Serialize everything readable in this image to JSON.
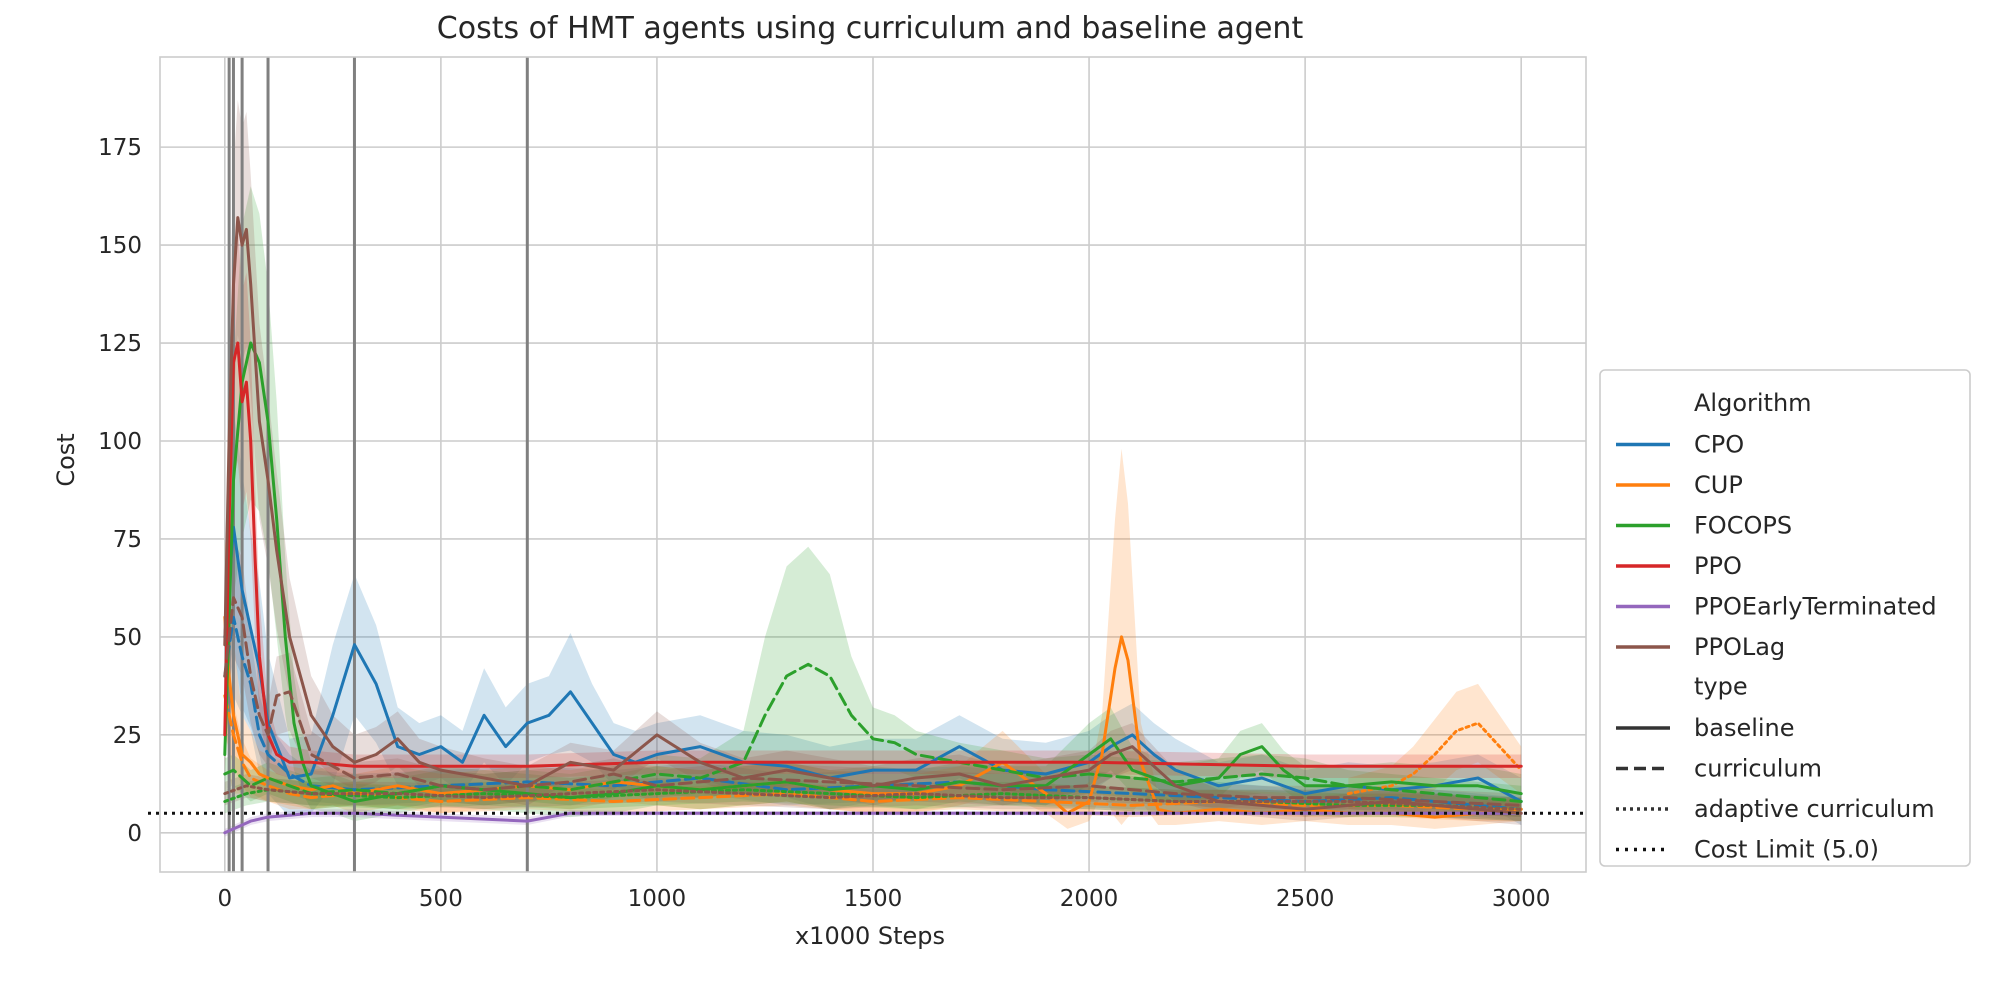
{
  "chart_data": {
    "type": "line",
    "title": "Costs of HMT agents using curriculum and baseline agent",
    "xlabel": "x1000 Steps",
    "ylabel": "Cost",
    "xlim": [
      -150,
      3150
    ],
    "ylim": [
      -10,
      198
    ],
    "xticks": [
      0,
      500,
      1000,
      1500,
      2000,
      2500,
      3000
    ],
    "yticks": [
      0,
      25,
      50,
      75,
      100,
      125,
      150,
      175
    ],
    "grid": true,
    "legend_placement": "right, outside plot, lower",
    "legend": {
      "algorithm_title": "Algorithm",
      "type_title": "type",
      "algorithms": [
        {
          "name": "CPO",
          "color": "#1f77b4"
        },
        {
          "name": "CUP",
          "color": "#ff7f0e"
        },
        {
          "name": "FOCOPS",
          "color": "#2ca02c"
        },
        {
          "name": "PPO",
          "color": "#d62728"
        },
        {
          "name": "PPOEarlyTerminated",
          "color": "#9467bd"
        },
        {
          "name": "PPOLag",
          "color": "#8c564b"
        }
      ],
      "types": [
        {
          "name": "baseline",
          "style": "solid"
        },
        {
          "name": "curriculum",
          "style": "dashed"
        },
        {
          "name": "adaptive curriculum",
          "style": "dotted"
        },
        {
          "name": "Cost Limit (5.0)",
          "style": "cost-limit"
        }
      ]
    },
    "reference_line": {
      "label": "Cost Limit (5.0)",
      "y": 5.0
    },
    "vertical_lines": [
      10,
      20,
      40,
      100,
      300,
      700
    ],
    "series": [
      {
        "algorithm": "CPO",
        "type": "baseline",
        "color": "#1f77b4",
        "x": [
          0,
          20,
          40,
          60,
          80,
          100,
          150,
          200,
          250,
          300,
          350,
          400,
          450,
          500,
          550,
          600,
          650,
          700,
          750,
          800,
          850,
          900,
          950,
          1000,
          1100,
          1200,
          1300,
          1400,
          1500,
          1600,
          1700,
          1800,
          1900,
          2000,
          2050,
          2100,
          2150,
          2200,
          2300,
          2400,
          2500,
          2600,
          2700,
          2800,
          2900,
          3000
        ],
        "y": [
          50,
          78,
          62,
          52,
          42,
          28,
          14,
          15,
          30,
          48,
          38,
          22,
          20,
          22,
          18,
          30,
          22,
          28,
          30,
          36,
          28,
          20,
          18,
          20,
          22,
          18,
          17,
          14,
          16,
          16,
          22,
          16,
          15,
          18,
          22,
          25,
          20,
          16,
          12,
          14,
          10,
          12,
          11,
          12,
          14,
          8
        ],
        "band": [
          15,
          30,
          30,
          25,
          22,
          18,
          10,
          10,
          18,
          18,
          15,
          10,
          8,
          8,
          8,
          12,
          10,
          10,
          10,
          15,
          10,
          8,
          8,
          8,
          8,
          8,
          8,
          8,
          8,
          8,
          8,
          8,
          8,
          8,
          8,
          8,
          8,
          8,
          6,
          6,
          6,
          6,
          6,
          6,
          6,
          6
        ]
      },
      {
        "algorithm": "CPO",
        "type": "curriculum",
        "color": "#1f77b4",
        "x": [
          0,
          20,
          40,
          60,
          80,
          100,
          150,
          200,
          300,
          500,
          700,
          900,
          1100,
          1300,
          1500,
          1700,
          1900,
          2100,
          2300,
          2500,
          2700,
          2900,
          3000
        ],
        "y": [
          40,
          55,
          45,
          38,
          25,
          20,
          15,
          12,
          11,
          12,
          13,
          12,
          14,
          11,
          12,
          13,
          11,
          10,
          9,
          8,
          9,
          7,
          6
        ],
        "band": [
          10,
          20,
          15,
          12,
          10,
          8,
          5,
          4,
          4,
          4,
          4,
          4,
          4,
          4,
          4,
          4,
          4,
          4,
          4,
          3,
          3,
          3,
          3
        ]
      },
      {
        "algorithm": "CUP",
        "type": "baseline",
        "color": "#ff7f0e",
        "x": [
          0,
          10,
          20,
          40,
          60,
          80,
          100,
          150,
          200,
          250,
          300,
          350,
          400,
          500,
          600,
          700,
          800,
          900,
          1000,
          1100,
          1200,
          1300,
          1400,
          1500,
          1600,
          1700,
          1800,
          1900,
          1950,
          2000,
          2030,
          2060,
          2075,
          2090,
          2120,
          2160,
          2200,
          2300,
          2400,
          2500,
          2600,
          2700,
          2800,
          2900,
          3000
        ],
        "y": [
          55,
          40,
          30,
          20,
          18,
          15,
          14,
          12,
          11,
          12,
          10,
          11,
          12,
          10,
          11,
          12,
          11,
          13,
          12,
          11,
          12,
          13,
          11,
          10,
          10,
          12,
          18,
          10,
          5,
          8,
          20,
          42,
          50,
          44,
          18,
          6,
          5,
          6,
          5,
          6,
          5,
          5,
          4,
          5,
          6
        ],
        "band": [
          20,
          25,
          20,
          10,
          8,
          6,
          6,
          5,
          5,
          5,
          5,
          5,
          5,
          5,
          5,
          5,
          5,
          5,
          5,
          5,
          5,
          5,
          5,
          5,
          5,
          5,
          8,
          5,
          4,
          5,
          10,
          38,
          48,
          40,
          10,
          4,
          3,
          3,
          3,
          3,
          3,
          3,
          3,
          3,
          3
        ]
      },
      {
        "algorithm": "CUP",
        "type": "curriculum",
        "color": "#ff7f0e",
        "x": [
          0,
          20,
          40,
          60,
          100,
          150,
          200,
          300,
          400,
          500,
          700,
          900,
          1100,
          1300,
          1500,
          1700,
          1900,
          2100,
          2300,
          2500,
          2700,
          2900,
          3000
        ],
        "y": [
          35,
          25,
          18,
          14,
          12,
          10,
          9,
          10,
          9,
          8,
          9,
          8,
          9,
          10,
          8,
          9,
          8,
          7,
          8,
          7,
          7,
          6,
          6
        ],
        "band": [
          10,
          8,
          6,
          5,
          4,
          4,
          3,
          3,
          3,
          3,
          3,
          3,
          3,
          3,
          3,
          3,
          3,
          3,
          3,
          3,
          3,
          3,
          3
        ]
      },
      {
        "algorithm": "CUP",
        "type": "adaptive curriculum",
        "color": "#ff7f0e",
        "x": [
          2600,
          2700,
          2750,
          2800,
          2850,
          2900,
          2950,
          3000
        ],
        "y": [
          10,
          12,
          15,
          20,
          26,
          28,
          22,
          16
        ],
        "band": [
          4,
          5,
          7,
          9,
          10,
          10,
          8,
          6
        ]
      },
      {
        "algorithm": "FOCOPS",
        "type": "baseline",
        "color": "#2ca02c",
        "x": [
          0,
          20,
          40,
          60,
          80,
          100,
          120,
          140,
          160,
          180,
          200,
          250,
          300,
          400,
          500,
          600,
          700,
          800,
          900,
          1000,
          1100,
          1200,
          1300,
          1400,
          1500,
          1600,
          1700,
          1800,
          1900,
          2000,
          2050,
          2100,
          2200,
          2300,
          2350,
          2400,
          2450,
          2500,
          2600,
          2700,
          2800,
          2900,
          3000
        ],
        "y": [
          20,
          90,
          115,
          125,
          120,
          105,
          80,
          50,
          28,
          18,
          12,
          10,
          8,
          10,
          12,
          11,
          10,
          9,
          10,
          12,
          11,
          12,
          13,
          11,
          12,
          11,
          13,
          12,
          12,
          20,
          24,
          16,
          12,
          14,
          20,
          22,
          16,
          12,
          12,
          13,
          12,
          12,
          10
        ],
        "band": [
          5,
          30,
          40,
          40,
          38,
          35,
          30,
          20,
          12,
          8,
          6,
          5,
          5,
          5,
          5,
          5,
          5,
          5,
          5,
          5,
          5,
          5,
          5,
          5,
          5,
          5,
          5,
          5,
          5,
          8,
          8,
          6,
          5,
          5,
          6,
          6,
          5,
          5,
          5,
          5,
          5,
          5,
          5
        ]
      },
      {
        "algorithm": "FOCOPS",
        "type": "curriculum",
        "color": "#2ca02c",
        "x": [
          0,
          20,
          40,
          60,
          100,
          150,
          200,
          300,
          400,
          500,
          600,
          700,
          800,
          900,
          1000,
          1100,
          1200,
          1250,
          1300,
          1350,
          1400,
          1450,
          1500,
          1550,
          1600,
          1700,
          1800,
          1900,
          2000,
          2100,
          2200,
          2300,
          2400,
          2500,
          2600,
          2700,
          2800,
          2900,
          3000
        ],
        "y": [
          15,
          16,
          14,
          12,
          14,
          12,
          10,
          11,
          10,
          12,
          11,
          12,
          11,
          13,
          15,
          14,
          18,
          30,
          40,
          43,
          40,
          30,
          24,
          23,
          20,
          18,
          16,
          14,
          15,
          14,
          13,
          14,
          15,
          14,
          12,
          11,
          10,
          9,
          8
        ],
        "band": [
          4,
          4,
          4,
          4,
          4,
          4,
          4,
          4,
          4,
          4,
          4,
          4,
          4,
          4,
          5,
          5,
          8,
          20,
          28,
          30,
          26,
          15,
          8,
          7,
          6,
          5,
          5,
          5,
          5,
          5,
          5,
          5,
          5,
          5,
          4,
          4,
          4,
          4,
          4
        ]
      },
      {
        "algorithm": "FOCOPS",
        "type": "adaptive curriculum",
        "color": "#2ca02c",
        "x": [
          0,
          50,
          100,
          200,
          400,
          600,
          800,
          1000,
          1200,
          1400,
          1600,
          1800,
          2000,
          2200,
          2400,
          2600,
          2800,
          3000
        ],
        "y": [
          8,
          10,
          11,
          10,
          9,
          10,
          9,
          10,
          11,
          10,
          9,
          10,
          9,
          8,
          8,
          7,
          7,
          6
        ],
        "band": [
          3,
          3,
          3,
          3,
          3,
          3,
          3,
          3,
          3,
          3,
          3,
          3,
          3,
          3,
          3,
          3,
          3,
          3
        ]
      },
      {
        "algorithm": "PPO",
        "type": "baseline",
        "color": "#d62728",
        "x": [
          0,
          10,
          20,
          30,
          40,
          50,
          60,
          70,
          80,
          100,
          120,
          150,
          200,
          300,
          500,
          700,
          1000,
          1500,
          2000,
          2500,
          3000
        ],
        "y": [
          25,
          80,
          120,
          125,
          110,
          115,
          100,
          70,
          45,
          25,
          20,
          18,
          18,
          17,
          17,
          17,
          18,
          18,
          18,
          17,
          17
        ],
        "band": [
          10,
          20,
          30,
          30,
          28,
          28,
          25,
          20,
          15,
          8,
          5,
          4,
          3,
          3,
          3,
          3,
          3,
          3,
          3,
          3,
          3
        ]
      },
      {
        "algorithm": "PPOEarlyTerminated",
        "type": "baseline",
        "color": "#9467bd",
        "x": [
          0,
          20,
          40,
          60,
          100,
          150,
          200,
          300,
          400,
          500,
          600,
          700,
          800,
          1000,
          1500,
          2000,
          2500,
          3000
        ],
        "y": [
          0,
          1,
          2,
          3,
          4,
          4.5,
          5,
          5,
          4.5,
          4,
          3.5,
          3,
          5,
          5,
          5,
          5,
          5,
          5
        ],
        "band": [
          1,
          1,
          1,
          1,
          1,
          1,
          1,
          1,
          1,
          1,
          1,
          1,
          0.8,
          0.5,
          0.5,
          0.5,
          0.5,
          0.5
        ]
      },
      {
        "algorithm": "PPOLag",
        "type": "baseline",
        "color": "#8c564b",
        "x": [
          0,
          10,
          20,
          30,
          40,
          50,
          60,
          80,
          100,
          120,
          150,
          180,
          200,
          250,
          300,
          350,
          400,
          450,
          500,
          600,
          700,
          800,
          900,
          1000,
          1100,
          1200,
          1300,
          1400,
          1500,
          1600,
          1700,
          1800,
          1900,
          2000,
          2050,
          2100,
          2200,
          2300,
          2400,
          2500,
          2600,
          2700,
          2800,
          2900,
          3000
        ],
        "y": [
          48,
          100,
          140,
          157,
          150,
          154,
          140,
          105,
          90,
          72,
          50,
          38,
          30,
          22,
          18,
          20,
          24,
          18,
          16,
          14,
          12,
          18,
          16,
          25,
          18,
          14,
          16,
          14,
          12,
          14,
          15,
          12,
          14,
          16,
          20,
          22,
          12,
          8,
          7,
          6,
          7,
          8,
          7,
          6,
          5
        ],
        "band": [
          15,
          25,
          30,
          30,
          30,
          30,
          28,
          25,
          22,
          20,
          15,
          12,
          10,
          8,
          7,
          7,
          7,
          6,
          6,
          5,
          5,
          5,
          5,
          6,
          5,
          5,
          5,
          5,
          5,
          5,
          5,
          5,
          5,
          5,
          6,
          6,
          4,
          3,
          3,
          3,
          3,
          3,
          3,
          3,
          3
        ]
      },
      {
        "algorithm": "PPOLag",
        "type": "curriculum",
        "color": "#8c564b",
        "x": [
          0,
          20,
          40,
          60,
          80,
          100,
          120,
          150,
          200,
          300,
          400,
          500,
          600,
          700,
          800,
          900,
          1000,
          1200,
          1400,
          1600,
          1800,
          2000,
          2200,
          2400,
          2600,
          2800,
          3000
        ],
        "y": [
          40,
          60,
          55,
          40,
          30,
          25,
          35,
          36,
          20,
          14,
          15,
          12,
          11,
          12,
          13,
          15,
          12,
          14,
          13,
          12,
          11,
          12,
          10,
          9,
          9,
          8,
          7
        ],
        "band": [
          10,
          15,
          15,
          12,
          10,
          8,
          10,
          10,
          6,
          4,
          4,
          4,
          4,
          4,
          4,
          4,
          4,
          4,
          4,
          4,
          4,
          4,
          3,
          3,
          3,
          3,
          3
        ]
      },
      {
        "algorithm": "PPOLag",
        "type": "adaptive curriculum",
        "color": "#8c564b",
        "x": [
          0,
          50,
          100,
          200,
          400,
          600,
          800,
          1000,
          1200,
          1400,
          1600,
          1800,
          2000,
          2200,
          2400,
          2600,
          2800,
          3000
        ],
        "y": [
          10,
          12,
          11,
          10,
          10,
          9,
          10,
          11,
          10,
          9,
          10,
          9,
          9,
          8,
          8,
          8,
          7,
          6
        ],
        "band": [
          3,
          3,
          3,
          3,
          3,
          3,
          3,
          3,
          3,
          3,
          3,
          3,
          3,
          3,
          3,
          3,
          3,
          3
        ]
      }
    ]
  }
}
